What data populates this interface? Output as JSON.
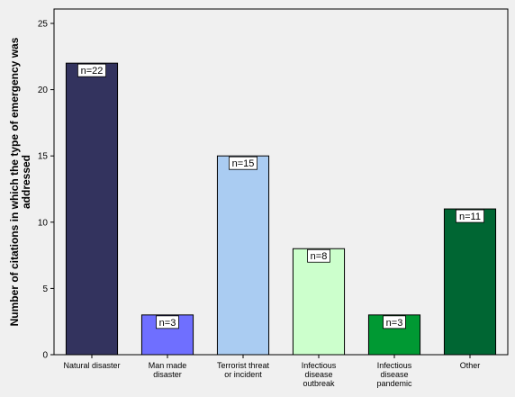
{
  "chart_data": {
    "type": "bar",
    "categories": [
      [
        "Natural disaster"
      ],
      [
        "Man made",
        "disaster"
      ],
      [
        "Terrorist threat",
        "or incident"
      ],
      [
        "Infectious",
        "disease",
        "outbreak"
      ],
      [
        "Infectious",
        "disease",
        "pandemic"
      ],
      [
        "Other"
      ]
    ],
    "values": [
      22,
      3,
      15,
      8,
      3,
      11
    ],
    "data_labels": [
      "n=22",
      "n=3",
      "n=15",
      "n=8",
      "n=3",
      "n=11"
    ],
    "colors": [
      "#33335e",
      "#6f6fff",
      "#aaccf2",
      "#ccffcc",
      "#009933",
      "#006633"
    ],
    "title": "",
    "xlabel": "",
    "ylabel": [
      "Number of citations in which the type of emergency was",
      "addressed"
    ],
    "ylim": [
      0,
      25
    ],
    "yticks": [
      0,
      5,
      10,
      15,
      20,
      25
    ],
    "grid": false,
    "legend": "none"
  }
}
